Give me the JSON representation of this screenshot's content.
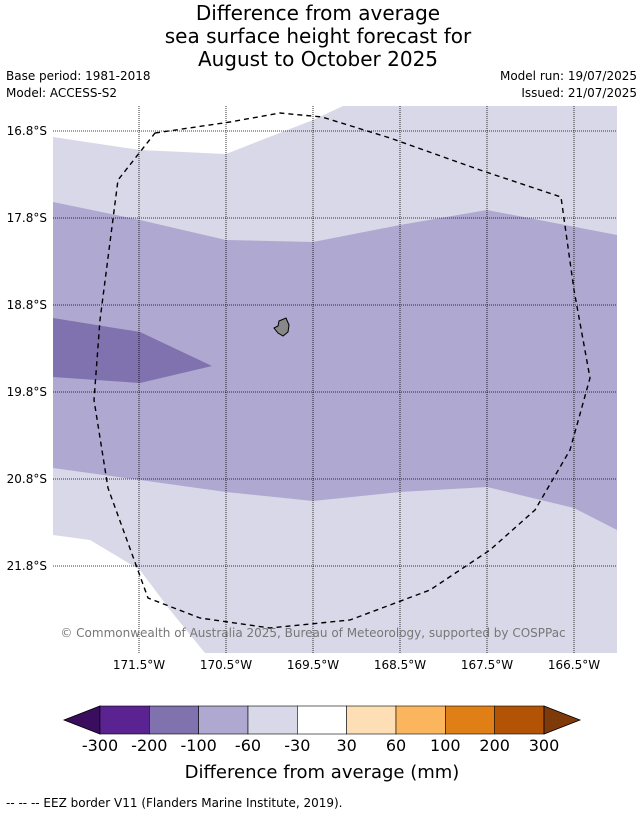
{
  "title": {
    "line1": "Difference from average",
    "line2": "sea surface height forecast for",
    "line3": "August to October 2025"
  },
  "meta": {
    "base_period": "Base period: 1981-2018",
    "model": "Model: ACCESS-S2",
    "model_run": "Model run: 19/07/2025",
    "issued": "Issued: 21/07/2025"
  },
  "map": {
    "latitude_labels": [
      "16.8°S",
      "17.8°S",
      "18.8°S",
      "19.8°S",
      "20.8°S",
      "21.8°S"
    ],
    "longitude_labels": [
      "171.5°W",
      "170.5°W",
      "169.5°W",
      "168.5°W",
      "167.5°W",
      "166.5°W"
    ],
    "copyright": "© Commonwealth of Australia 2025, Bureau of Meteorology, supported by COSPPac",
    "colors": {
      "light_lavender": "#d8d8e8",
      "mid_lavender": "#afa8d0",
      "dark_lavender": "#7f72ae",
      "island": "#888888",
      "eez_line": "#000000"
    }
  },
  "colorbar": {
    "segments": [
      {
        "color": "#5b2391"
      },
      {
        "color": "#7f72ae"
      },
      {
        "color": "#afa8d0"
      },
      {
        "color": "#d8d8e8"
      },
      {
        "color": "#ffffff"
      },
      {
        "color": "#fedfb5"
      },
      {
        "color": "#fbb65d"
      },
      {
        "color": "#e07f16"
      },
      {
        "color": "#b25306"
      }
    ],
    "left_extend_color": "#3b0d5e",
    "right_extend_color": "#7f3a0a",
    "labels": [
      "-300",
      "-200",
      "-100",
      "-60",
      "-30",
      "30",
      "60",
      "100",
      "200",
      "300"
    ],
    "title": "Difference from average (mm)"
  },
  "eez_note": "--  --  -- EEZ border V11 (Flanders Marine Institute, 2019)."
}
